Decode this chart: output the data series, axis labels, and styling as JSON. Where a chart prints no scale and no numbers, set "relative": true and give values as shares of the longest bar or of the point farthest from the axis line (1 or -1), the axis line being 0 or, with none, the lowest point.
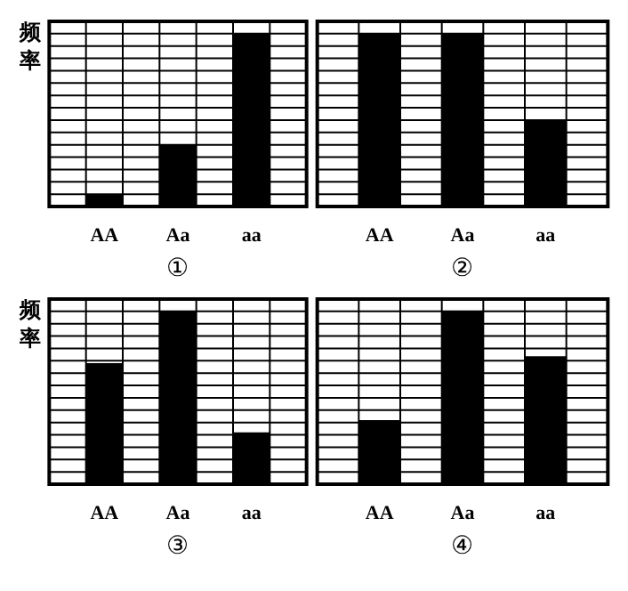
{
  "chart_data": [
    {
      "type": "bar",
      "title": "①",
      "ylabel": "频率",
      "categories": [
        "AA",
        "Aa",
        "aa"
      ],
      "values": [
        0.07,
        0.36,
        1
      ],
      "color": "#000000",
      "relative": true,
      "grid": true
    },
    {
      "type": "bar",
      "title": "②",
      "categories": [
        "AA",
        "Aa",
        "aa"
      ],
      "values": [
        1,
        1,
        0.5
      ],
      "color": "#000000",
      "relative": true,
      "grid": true
    },
    {
      "type": "bar",
      "title": "③",
      "ylabel": "频率",
      "categories": [
        "AA",
        "Aa",
        "aa"
      ],
      "values": [
        0.7,
        1,
        0.3
      ],
      "color": "#000000",
      "relative": true,
      "grid": true
    },
    {
      "type": "bar",
      "title": "④",
      "categories": [
        "AA",
        "Aa",
        "aa"
      ],
      "values": [
        0.37,
        1,
        0.74
      ],
      "color": "#000000",
      "relative": true,
      "grid": true
    }
  ]
}
